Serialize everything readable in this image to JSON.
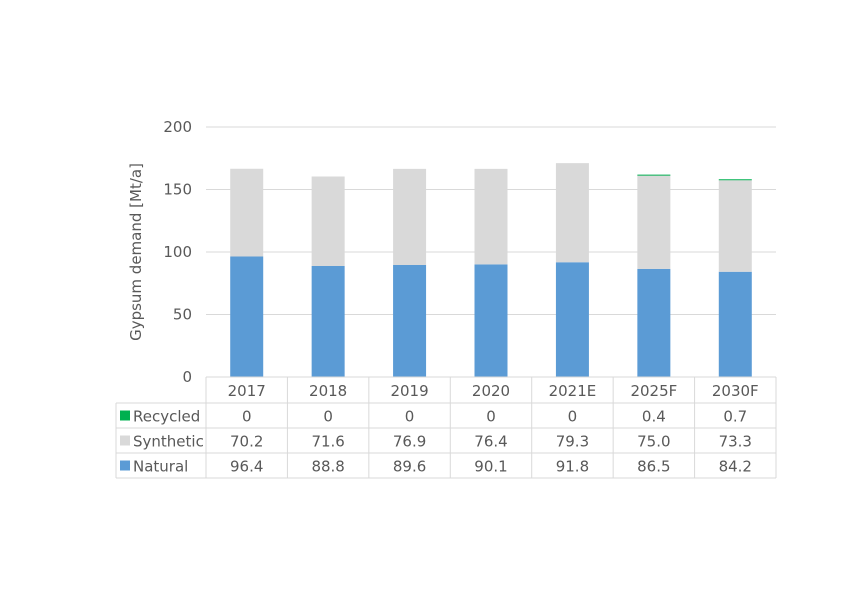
{
  "chart_data": {
    "type": "bar",
    "stacked": true,
    "title": "",
    "xlabel": "",
    "ylabel": "Gypsum demand [Mt/a]",
    "ylim": [
      0,
      200
    ],
    "yticks": [
      0,
      50,
      100,
      150,
      200
    ],
    "grid": true,
    "legend": "data-table",
    "categories": [
      "2017",
      "2018",
      "2019",
      "2020",
      "2021E",
      "2025F",
      "2030F"
    ],
    "series": [
      {
        "name": "Natural",
        "color": "#5B9BD5",
        "values": [
          96.4,
          88.8,
          89.6,
          90.1,
          91.8,
          86.5,
          84.2
        ],
        "labels": [
          "96.4",
          "88.8",
          "89.6",
          "90.1",
          "91.8",
          "86.5",
          "84.2"
        ]
      },
      {
        "name": "Synthetic",
        "color": "#D9D9D9",
        "values": [
          70.2,
          71.6,
          76.9,
          76.4,
          79.3,
          75.0,
          73.3
        ],
        "labels": [
          "70.2",
          "71.6",
          "76.9",
          "76.4",
          "79.3",
          "75.0",
          "73.3"
        ]
      },
      {
        "name": "Recycled",
        "color": "#00B050",
        "values": [
          0,
          0,
          0,
          0,
          0,
          0.4,
          0.7
        ],
        "labels": [
          "0",
          "0",
          "0",
          "0",
          "0",
          "0.4",
          "0.7"
        ]
      }
    ],
    "table_row_order": [
      "Recycled",
      "Synthetic",
      "Natural"
    ]
  }
}
